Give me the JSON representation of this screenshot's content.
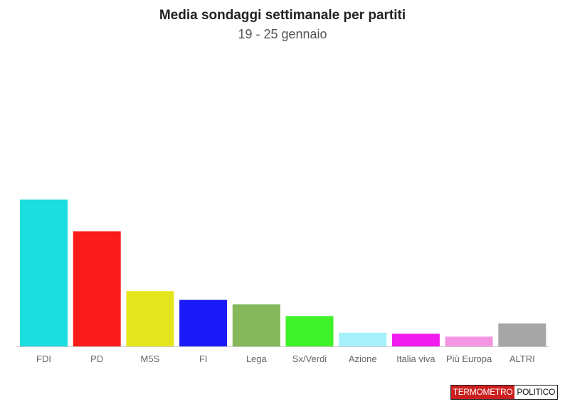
{
  "chart_data": {
    "type": "bar",
    "title": "Media sondaggi settimanale per partiti",
    "subtitle": "19 - 25 gennaio",
    "categories": [
      "FDI",
      "PD",
      "M5S",
      "FI",
      "Lega",
      "Sx/Verdi",
      "Azione",
      "Italia viva",
      "Più Europa",
      "ALTRI"
    ],
    "values": [
      30.0,
      23.5,
      11.3,
      9.5,
      8.6,
      6.2,
      2.8,
      2.6,
      2.0,
      4.7
    ],
    "colors": [
      "#1bdede",
      "#fa1b1b",
      "#e5e51d",
      "#1b1bfa",
      "#84b85a",
      "#40f22a",
      "#a6f0fc",
      "#ef1bef",
      "#f495e3",
      "#a6a6a6"
    ],
    "ylim": [
      0,
      42
    ],
    "grid": false,
    "legend": "none"
  },
  "logo": {
    "left_text": "TERMOMETRO",
    "right_text": "POLITICO"
  }
}
